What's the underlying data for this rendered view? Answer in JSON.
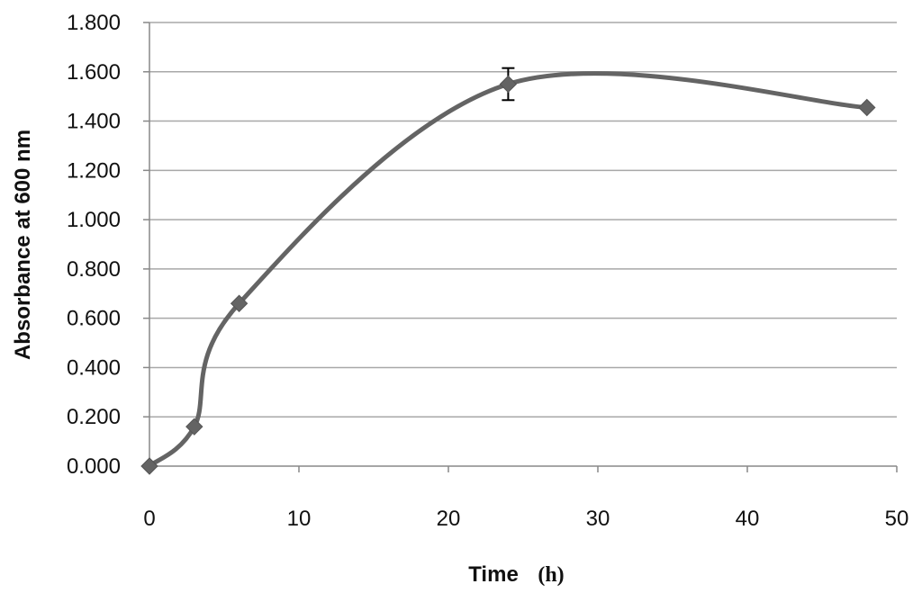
{
  "chart_data": {
    "type": "line",
    "title": "",
    "xlabel": "Time",
    "xlabel_unit": "(h)",
    "ylabel": "Absorbance at 600 nm",
    "xlim": [
      0,
      50
    ],
    "ylim": [
      0,
      1.8
    ],
    "x_ticks": [
      "0",
      "10",
      "20",
      "30",
      "40",
      "50"
    ],
    "y_ticks": [
      "0.000",
      "0.200",
      "0.400",
      "0.600",
      "0.800",
      "1.000",
      "1.200",
      "1.400",
      "1.600",
      "1.800"
    ],
    "grid": "horizontal",
    "legend": "none",
    "smooth": true,
    "series": [
      {
        "color": "#646464",
        "marker": "diamond",
        "x": [
          0,
          3,
          6,
          24,
          48
        ],
        "y": [
          0.0,
          0.16,
          0.66,
          1.55,
          1.455
        ],
        "error": [
          0,
          0,
          0,
          0.065,
          0
        ]
      }
    ]
  }
}
